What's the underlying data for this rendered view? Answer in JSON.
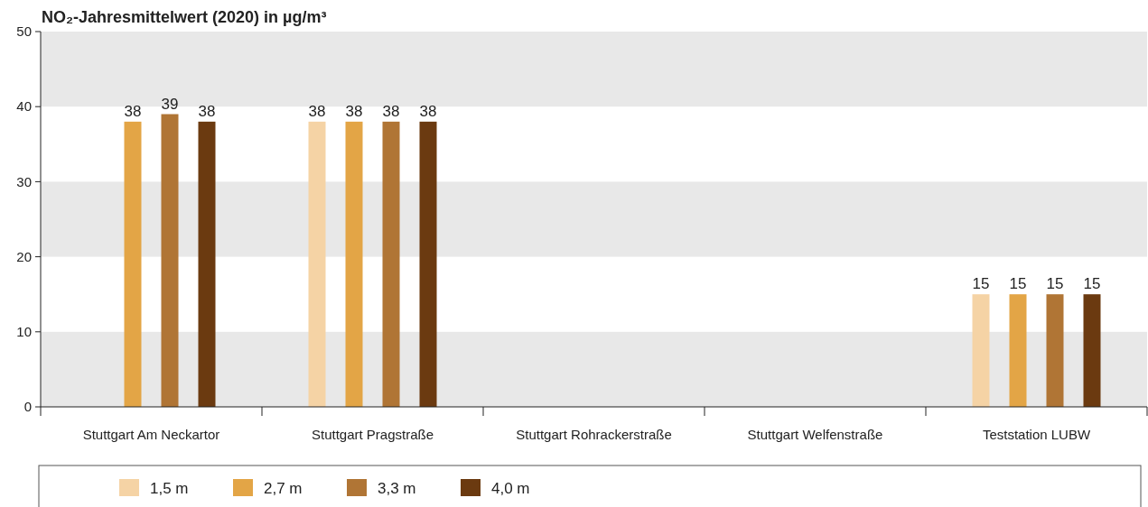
{
  "chart_data": {
    "type": "bar",
    "title": "NO₂-Jahresmittelwert (2020) in µg/m³",
    "categories": [
      "Stuttgart Am Neckartor",
      "Stuttgart Pragstraße",
      "Stuttgart Rohrackerstraße",
      "Stuttgart Welfenstraße",
      "Teststation LUBW"
    ],
    "series": [
      {
        "name": "1,5 m",
        "color": "#f5d3a5",
        "values": [
          null,
          38,
          null,
          null,
          15
        ]
      },
      {
        "name": "2,7 m",
        "color": "#e3a546",
        "values": [
          38,
          38,
          null,
          null,
          15
        ]
      },
      {
        "name": "3,3 m",
        "color": "#b07535",
        "values": [
          39,
          38,
          null,
          null,
          15
        ]
      },
      {
        "name": "4,0 m",
        "color": "#6b3a10",
        "values": [
          38,
          38,
          null,
          null,
          15
        ]
      }
    ],
    "ylim": [
      0,
      50
    ],
    "yticks": [
      0,
      10,
      20,
      30,
      40,
      50
    ],
    "bands": [
      {
        "axis": "y",
        "from": 0,
        "to": 10,
        "color": "#e8e8e8"
      },
      {
        "axis": "y",
        "from": 20,
        "to": 30,
        "color": "#e8e8e8"
      },
      {
        "axis": "y",
        "from": 40,
        "to": 50,
        "color": "#e8e8e8"
      }
    ],
    "legend": "bottom",
    "data_labels": true
  }
}
